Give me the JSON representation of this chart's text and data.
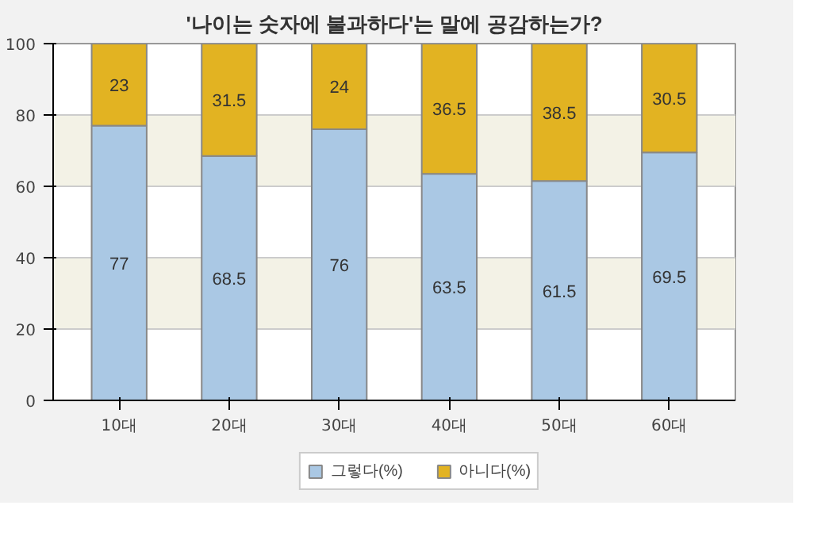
{
  "chart_data": {
    "type": "bar",
    "stacked": true,
    "title": "'나이는 숫자에 불과하다'는 말에 공감하는가?",
    "categories": [
      "10대",
      "20대",
      "30대",
      "40대",
      "50대",
      "60대"
    ],
    "series": [
      {
        "name": "그렇다(%)",
        "color": "#aac8e4",
        "values": [
          77,
          68.5,
          76,
          63.5,
          61.5,
          69.5
        ]
      },
      {
        "name": "아니다(%)",
        "color": "#e2b322",
        "values": [
          23,
          31.5,
          24,
          36.5,
          38.5,
          30.5
        ]
      }
    ],
    "ylim": [
      0,
      100
    ],
    "yticks": [
      0,
      20,
      40,
      60,
      80,
      100
    ],
    "grid": "y",
    "legend": "bottom",
    "data_labels": true
  }
}
